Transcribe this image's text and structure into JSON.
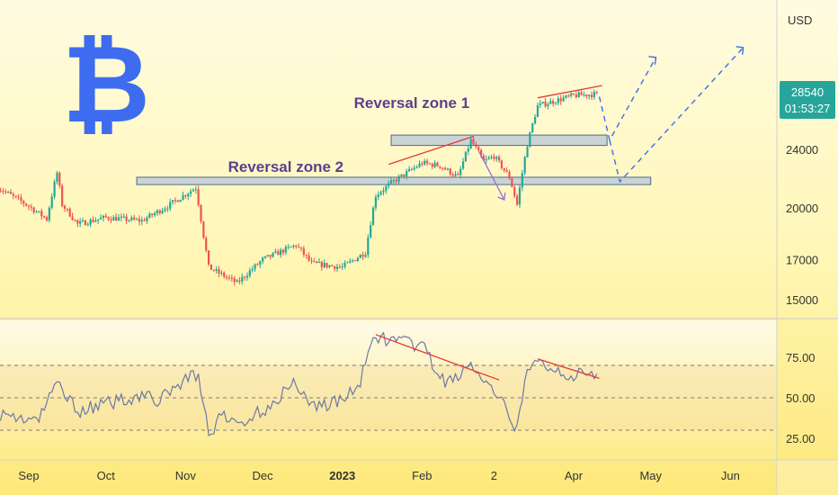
{
  "chart_data": [
    {
      "type": "candlestick",
      "symbol_glyph": "₿",
      "currency_label": "USD",
      "price_label": "28540",
      "countdown_label": "01:53:27",
      "y_ticks": [
        {
          "value": 24000,
          "label": "24000"
        },
        {
          "value": 20000,
          "label": "20000"
        },
        {
          "value": 17000,
          "label": "17000"
        },
        {
          "value": 15000,
          "label": "15000"
        }
      ],
      "x_ticks": [
        {
          "date": "2022-09-01",
          "label": "Sep"
        },
        {
          "date": "2022-10-01",
          "label": "Oct"
        },
        {
          "date": "2022-11-01",
          "label": "Nov"
        },
        {
          "date": "2022-12-01",
          "label": "Dec"
        },
        {
          "date": "2023-01-01",
          "label": "2023"
        },
        {
          "date": "2023-02-01",
          "label": "Feb"
        },
        {
          "date": "2023-03-01",
          "label": "2"
        },
        {
          "date": "2023-04-01",
          "label": "Apr"
        },
        {
          "date": "2023-05-01",
          "label": "May"
        },
        {
          "date": "2023-06-01",
          "label": "Jun"
        }
      ],
      "annotations": [
        {
          "label": "Reversal zone 1",
          "price_low": 24300,
          "price_high": 25100,
          "date_from": "2023-01-20",
          "date_to": "2023-04-14"
        },
        {
          "label": "Reversal zone 2",
          "price_low": 21500,
          "price_high": 22000,
          "date_from": "2022-10-13",
          "date_to": "2023-05-01"
        }
      ],
      "anchors": [
        {
          "date": "2022-08-20",
          "close": 21300
        },
        {
          "date": "2022-09-01",
          "close": 20100
        },
        {
          "date": "2022-09-08",
          "close": 19300
        },
        {
          "date": "2022-09-12",
          "close": 22300
        },
        {
          "date": "2022-09-14",
          "close": 20200
        },
        {
          "date": "2022-09-20",
          "close": 19000
        },
        {
          "date": "2022-10-01",
          "close": 19400
        },
        {
          "date": "2022-10-15",
          "close": 19200
        },
        {
          "date": "2022-10-25",
          "close": 20100
        },
        {
          "date": "2022-11-05",
          "close": 21300
        },
        {
          "date": "2022-11-08",
          "close": 18300
        },
        {
          "date": "2022-11-10",
          "close": 16600
        },
        {
          "date": "2022-11-14",
          "close": 16300
        },
        {
          "date": "2022-11-21",
          "close": 15800
        },
        {
          "date": "2022-12-01",
          "close": 17000
        },
        {
          "date": "2022-12-14",
          "close": 17800
        },
        {
          "date": "2022-12-20",
          "close": 16800
        },
        {
          "date": "2023-01-01",
          "close": 16600
        },
        {
          "date": "2023-01-10",
          "close": 17400
        },
        {
          "date": "2023-01-14",
          "close": 20800
        },
        {
          "date": "2023-01-20",
          "close": 21600
        },
        {
          "date": "2023-02-01",
          "close": 23000
        },
        {
          "date": "2023-02-08",
          "close": 22800
        },
        {
          "date": "2023-02-15",
          "close": 22000
        },
        {
          "date": "2023-02-20",
          "close": 24700
        },
        {
          "date": "2023-02-25",
          "close": 23100
        },
        {
          "date": "2023-03-01",
          "close": 23500
        },
        {
          "date": "2023-03-07",
          "close": 22000
        },
        {
          "date": "2023-03-10",
          "close": 20200
        },
        {
          "date": "2023-03-14",
          "close": 24400
        },
        {
          "date": "2023-03-18",
          "close": 27500
        },
        {
          "date": "2023-04-01",
          "close": 28400
        },
        {
          "date": "2023-04-10",
          "close": 28540
        }
      ],
      "projections": [
        {
          "style": "dashed",
          "points": [
            {
              "date": "2023-04-11",
              "price": 28300
            },
            {
              "date": "2023-04-15",
              "price": 24700
            },
            {
              "date": "2023-05-03",
              "price": 32000
            }
          ]
        },
        {
          "style": "dashed",
          "points": [
            {
              "date": "2023-04-15",
              "price": 24700
            },
            {
              "date": "2023-04-19",
              "price": 21700
            },
            {
              "date": "2023-06-06",
              "price": 33000
            }
          ]
        }
      ]
    },
    {
      "type": "line",
      "indicator": "RSI",
      "y_ticks": [
        {
          "value": 75,
          "label": "75.00"
        },
        {
          "value": 50,
          "label": "50.00"
        },
        {
          "value": 25,
          "label": "25.00"
        }
      ],
      "reference_lines": [
        70,
        50,
        30
      ],
      "anchors": [
        {
          "date": "2022-08-20",
          "value": 40
        },
        {
          "date": "2022-09-05",
          "value": 36
        },
        {
          "date": "2022-09-12",
          "value": 60
        },
        {
          "date": "2022-09-20",
          "value": 42
        },
        {
          "date": "2022-10-01",
          "value": 46
        },
        {
          "date": "2022-10-15",
          "value": 52
        },
        {
          "date": "2022-10-22",
          "value": 48
        },
        {
          "date": "2022-11-01",
          "value": 62
        },
        {
          "date": "2022-11-06",
          "value": 65
        },
        {
          "date": "2022-11-10",
          "value": 27
        },
        {
          "date": "2022-11-15",
          "value": 38
        },
        {
          "date": "2022-11-22",
          "value": 34
        },
        {
          "date": "2022-12-01",
          "value": 42
        },
        {
          "date": "2022-12-14",
          "value": 60
        },
        {
          "date": "2022-12-20",
          "value": 45
        },
        {
          "date": "2023-01-01",
          "value": 48
        },
        {
          "date": "2023-01-08",
          "value": 60
        },
        {
          "date": "2023-01-14",
          "value": 89
        },
        {
          "date": "2023-01-20",
          "value": 85
        },
        {
          "date": "2023-02-01",
          "value": 82
        },
        {
          "date": "2023-02-10",
          "value": 58
        },
        {
          "date": "2023-02-20",
          "value": 70
        },
        {
          "date": "2023-03-01",
          "value": 52
        },
        {
          "date": "2023-03-05",
          "value": 44
        },
        {
          "date": "2023-03-10",
          "value": 31
        },
        {
          "date": "2023-03-14",
          "value": 66
        },
        {
          "date": "2023-03-18",
          "value": 72
        },
        {
          "date": "2023-04-01",
          "value": 64
        },
        {
          "date": "2023-04-10",
          "value": 63
        }
      ]
    }
  ]
}
